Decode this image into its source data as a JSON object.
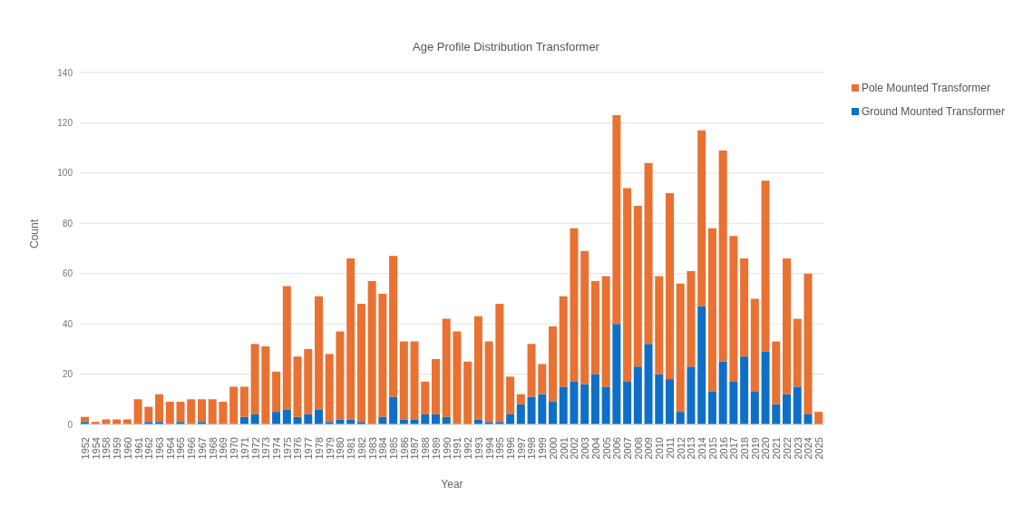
{
  "chart_data": {
    "type": "bar",
    "title": "Age Profile Distribution Transformer",
    "xlabel": "Year",
    "ylabel": "Count",
    "stacked": true,
    "legend": "top right",
    "grid": "y",
    "ylim": [
      0,
      140
    ],
    "yticks": [
      0,
      20,
      40,
      60,
      80,
      100,
      120,
      140
    ],
    "categories": [
      "1952",
      "1954",
      "1958",
      "1959",
      "1960",
      "1961",
      "1962",
      "1963",
      "1964",
      "1965",
      "1966",
      "1967",
      "1968",
      "1969",
      "1970",
      "1971",
      "1972",
      "1973",
      "1974",
      "1975",
      "1976",
      "1977",
      "1978",
      "1979",
      "1980",
      "1981",
      "1982",
      "1983",
      "1984",
      "1985",
      "1986",
      "1987",
      "1988",
      "1989",
      "1990",
      "1991",
      "1992",
      "1993",
      "1994",
      "1995",
      "1996",
      "1997",
      "1998",
      "1999",
      "2000",
      "2001",
      "2002",
      "2003",
      "2004",
      "2005",
      "2006",
      "2007",
      "2008",
      "2009",
      "2010",
      "2011",
      "2012",
      "2013",
      "2014",
      "2015",
      "2016",
      "2017",
      "2018",
      "2019",
      "2020",
      "2021",
      "2022",
      "2023",
      "2024",
      "2025"
    ],
    "series": [
      {
        "name": "Ground Mounted Transformer",
        "color": "#0f6fc6",
        "values": [
          1,
          0,
          0,
          0,
          0,
          0,
          1,
          1,
          0,
          1,
          0,
          1,
          0,
          0,
          0,
          3,
          4,
          0,
          5,
          6,
          3,
          4,
          6,
          1,
          2,
          2,
          1,
          0,
          3,
          11,
          2,
          2,
          4,
          4,
          3,
          0,
          0,
          2,
          1,
          1,
          4,
          8,
          11,
          12,
          9,
          15,
          17,
          16,
          20,
          15,
          40,
          17,
          23,
          32,
          20,
          18,
          5,
          23,
          47,
          13,
          25,
          17,
          27,
          13,
          29,
          8,
          12,
          15,
          4,
          0
        ]
      },
      {
        "name": "Pole Mounted Transformer",
        "color": "#e97132",
        "values": [
          2,
          1,
          2,
          2,
          2,
          10,
          6,
          11,
          9,
          8,
          10,
          9,
          10,
          9,
          15,
          12,
          28,
          31,
          16,
          49,
          24,
          26,
          45,
          27,
          35,
          64,
          47,
          57,
          49,
          56,
          31,
          31,
          13,
          22,
          39,
          37,
          25,
          41,
          32,
          47,
          15,
          4,
          21,
          12,
          30,
          36,
          61,
          53,
          37,
          44,
          83,
          77,
          64,
          72,
          39,
          74,
          51,
          38,
          70,
          65,
          84,
          58,
          39,
          37,
          68,
          25,
          54,
          27,
          56,
          5
        ]
      }
    ]
  }
}
